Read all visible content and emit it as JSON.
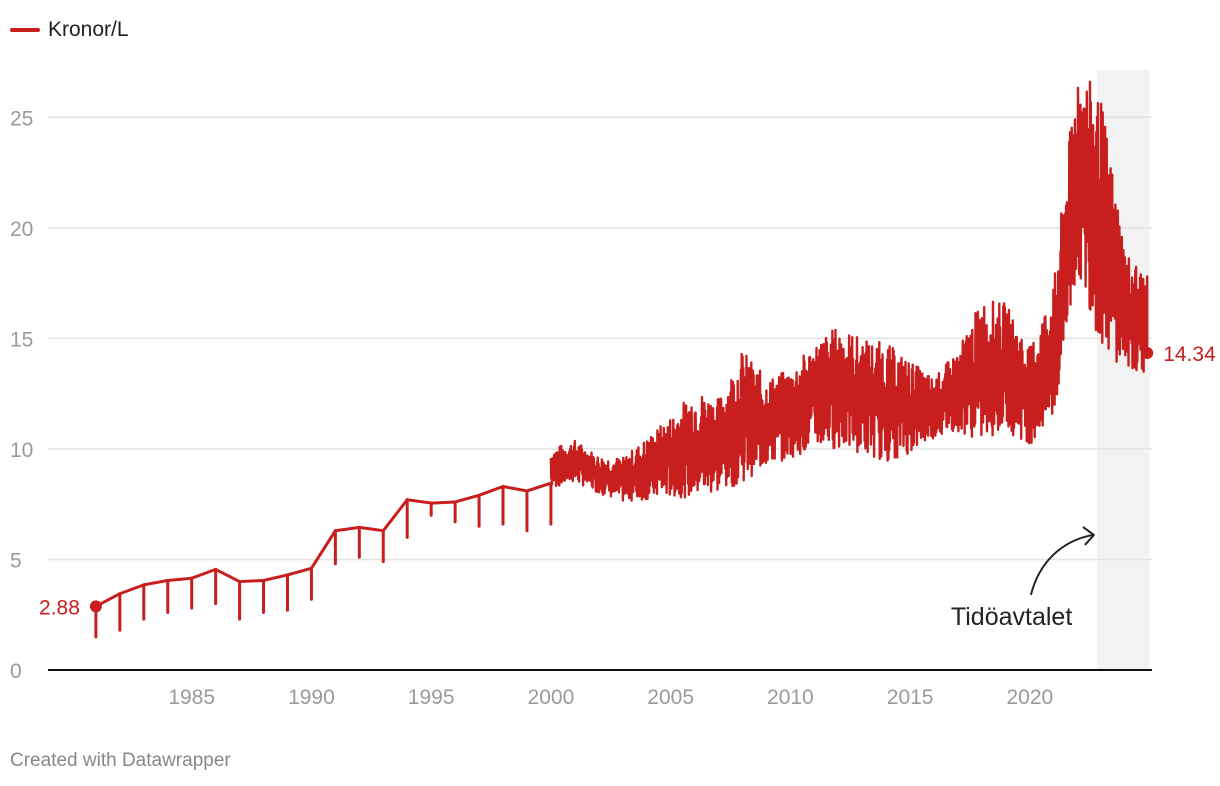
{
  "legend": {
    "label": "Kronor/L"
  },
  "footer": {
    "credit": "Created with Datawrapper"
  },
  "colors": {
    "series": "#c81e1e",
    "grid": "#e3e3e3",
    "axis": "#111111",
    "shade": "#f2f2f2",
    "tick": "#9a9a9a"
  },
  "chart_data": {
    "type": "line",
    "title": "",
    "xlabel": "",
    "ylabel": "",
    "series_name": "Kronor/L",
    "xlim": [
      1979.0,
      2025.1
    ],
    "ylim": [
      0,
      27.5
    ],
    "x_ticks": [
      1985,
      1990,
      1995,
      2000,
      2005,
      2010,
      2015,
      2020
    ],
    "y_ticks": [
      0,
      5,
      10,
      15,
      20,
      25
    ],
    "shaded_region": {
      "x_start": 2022.8,
      "x_end": 2025.0
    },
    "start_label": {
      "x": 1981.0,
      "y": 2.88,
      "text": "2.88"
    },
    "end_label": {
      "x": 2024.9,
      "y": 14.34,
      "text": "14.34"
    },
    "annotation": {
      "text": "Tidöavtalet",
      "target_x": 2022.8,
      "target_y": 6.2
    },
    "annual_points": [
      {
        "x": 1981.0,
        "y": 2.88,
        "dip": 1.5
      },
      {
        "x": 1982.0,
        "y": 3.45,
        "dip": 1.8
      },
      {
        "x": 1983.0,
        "y": 3.85,
        "dip": 2.3
      },
      {
        "x": 1984.0,
        "y": 4.05,
        "dip": 2.6
      },
      {
        "x": 1985.0,
        "y": 4.15,
        "dip": 2.8
      },
      {
        "x": 1986.0,
        "y": 4.55,
        "dip": 3.0
      },
      {
        "x": 1987.0,
        "y": 4.0,
        "dip": 2.3
      },
      {
        "x": 1988.0,
        "y": 4.05,
        "dip": 2.6
      },
      {
        "x": 1989.0,
        "y": 4.3,
        "dip": 2.7
      },
      {
        "x": 1990.0,
        "y": 4.6,
        "dip": 3.2
      },
      {
        "x": 1991.0,
        "y": 6.3,
        "dip": 4.8
      },
      {
        "x": 1992.0,
        "y": 6.45,
        "dip": 5.1
      },
      {
        "x": 1993.0,
        "y": 6.3,
        "dip": 4.9
      },
      {
        "x": 1994.0,
        "y": 7.7,
        "dip": 6.0
      },
      {
        "x": 1995.0,
        "y": 7.55,
        "dip": 7.0
      },
      {
        "x": 1996.0,
        "y": 7.6,
        "dip": 6.7
      },
      {
        "x": 1997.0,
        "y": 7.9,
        "dip": 6.5
      },
      {
        "x": 1998.0,
        "y": 8.3,
        "dip": 6.6
      },
      {
        "x": 1999.0,
        "y": 8.1,
        "dip": 6.3
      },
      {
        "x": 2000.0,
        "y": 8.45,
        "dip": 6.6
      }
    ],
    "volatile_range": [
      {
        "x": 2000.0,
        "lo": 8.2,
        "hi": 10.0
      },
      {
        "x": 2001.0,
        "lo": 8.5,
        "hi": 10.4
      },
      {
        "x": 2002.0,
        "lo": 8.0,
        "hi": 9.7
      },
      {
        "x": 2003.0,
        "lo": 7.6,
        "hi": 9.6
      },
      {
        "x": 2004.0,
        "lo": 7.7,
        "hi": 10.5
      },
      {
        "x": 2005.0,
        "lo": 7.8,
        "hi": 11.5
      },
      {
        "x": 2006.0,
        "lo": 7.8,
        "hi": 12.7
      },
      {
        "x": 2007.0,
        "lo": 8.0,
        "hi": 12.3
      },
      {
        "x": 2008.0,
        "lo": 8.5,
        "hi": 14.5
      },
      {
        "x": 2009.0,
        "lo": 9.2,
        "hi": 13.2
      },
      {
        "x": 2010.0,
        "lo": 9.6,
        "hi": 13.6
      },
      {
        "x": 2011.0,
        "lo": 10.0,
        "hi": 14.8
      },
      {
        "x": 2012.0,
        "lo": 10.0,
        "hi": 15.6
      },
      {
        "x": 2013.0,
        "lo": 9.8,
        "hi": 15.0
      },
      {
        "x": 2014.0,
        "lo": 9.4,
        "hi": 14.8
      },
      {
        "x": 2015.0,
        "lo": 9.8,
        "hi": 14.0
      },
      {
        "x": 2016.0,
        "lo": 10.5,
        "hi": 13.2
      },
      {
        "x": 2017.0,
        "lo": 10.8,
        "hi": 14.5
      },
      {
        "x": 2018.0,
        "lo": 10.3,
        "hi": 16.8
      },
      {
        "x": 2019.0,
        "lo": 10.8,
        "hi": 16.6
      },
      {
        "x": 2020.0,
        "lo": 10.2,
        "hi": 14.6
      },
      {
        "x": 2021.0,
        "lo": 11.2,
        "hi": 17.5
      },
      {
        "x": 2022.0,
        "lo": 18.0,
        "hi": 27.6
      },
      {
        "x": 2023.0,
        "lo": 14.5,
        "hi": 25.7
      },
      {
        "x": 2024.0,
        "lo": 13.6,
        "hi": 19.0
      },
      {
        "x": 2024.9,
        "lo": 13.4,
        "hi": 17.8
      }
    ]
  }
}
